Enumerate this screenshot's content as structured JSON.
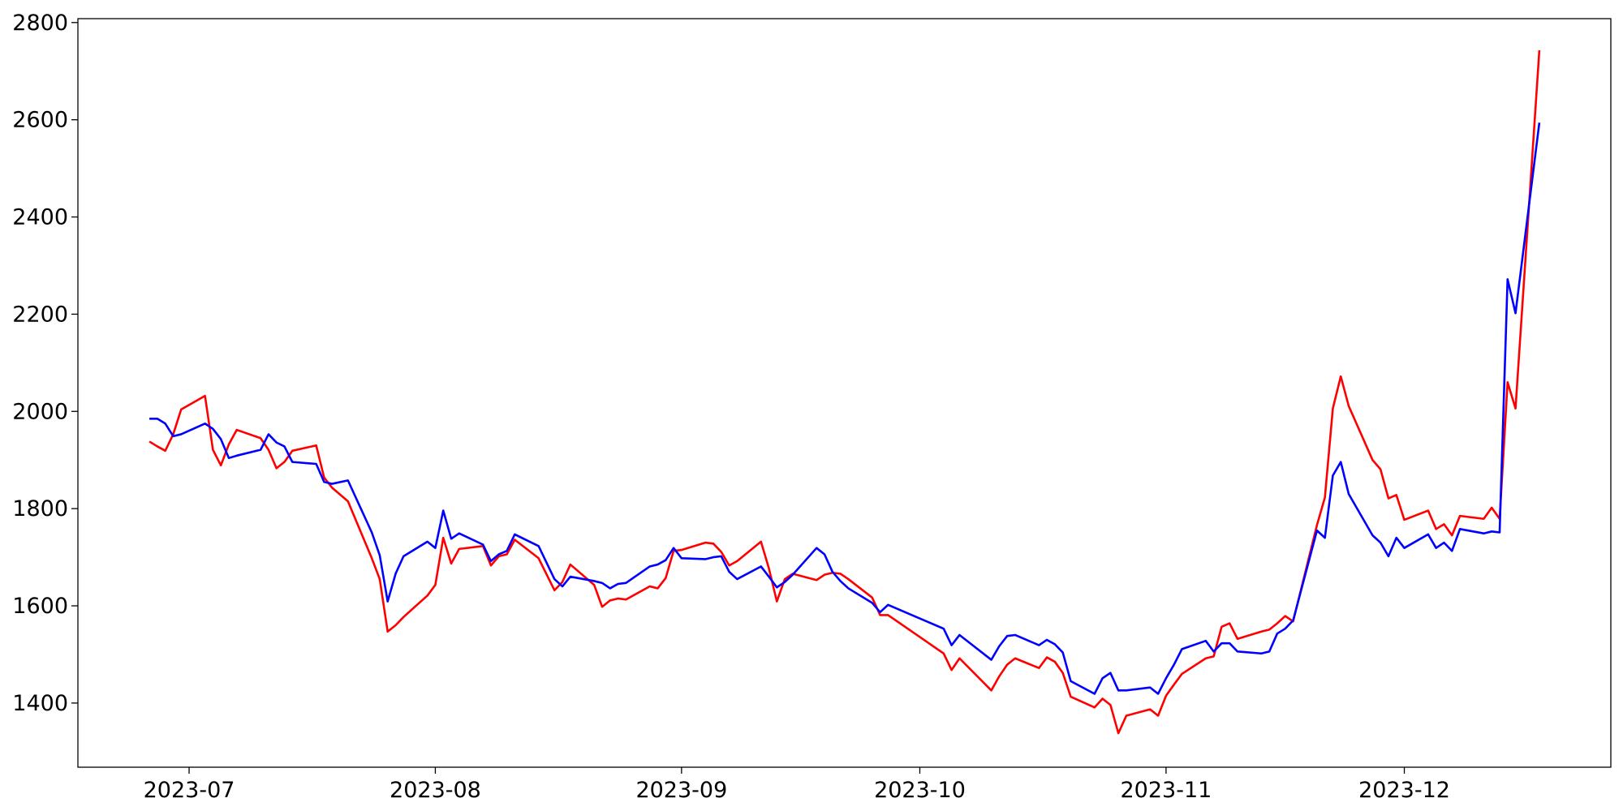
{
  "chart_data": {
    "type": "line",
    "x": [
      "2023-06-26",
      "2023-06-27",
      "2023-06-28",
      "2023-06-29",
      "2023-06-30",
      "2023-07-03",
      "2023-07-04",
      "2023-07-05",
      "2023-07-06",
      "2023-07-07",
      "2023-07-10",
      "2023-07-11",
      "2023-07-12",
      "2023-07-13",
      "2023-07-14",
      "2023-07-17",
      "2023-07-18",
      "2023-07-19",
      "2023-07-21",
      "2023-07-24",
      "2023-07-25",
      "2023-07-26",
      "2023-07-27",
      "2023-07-28",
      "2023-07-31",
      "2023-08-01",
      "2023-08-02",
      "2023-08-03",
      "2023-08-04",
      "2023-08-07",
      "2023-08-08",
      "2023-08-09",
      "2023-08-10",
      "2023-08-11",
      "2023-08-14",
      "2023-08-16",
      "2023-08-17",
      "2023-08-18",
      "2023-08-21",
      "2023-08-22",
      "2023-08-23",
      "2023-08-24",
      "2023-08-25",
      "2023-08-28",
      "2023-08-29",
      "2023-08-30",
      "2023-08-31",
      "2023-09-01",
      "2023-09-04",
      "2023-09-05",
      "2023-09-06",
      "2023-09-07",
      "2023-09-08",
      "2023-09-11",
      "2023-09-12",
      "2023-09-13",
      "2023-09-14",
      "2023-09-15",
      "2023-09-18",
      "2023-09-19",
      "2023-09-20",
      "2023-09-21",
      "2023-09-22",
      "2023-09-25",
      "2023-09-26",
      "2023-09-27",
      "2023-10-04",
      "2023-10-05",
      "2023-10-06",
      "2023-10-10",
      "2023-10-11",
      "2023-10-12",
      "2023-10-13",
      "2023-10-16",
      "2023-10-17",
      "2023-10-18",
      "2023-10-19",
      "2023-10-20",
      "2023-10-23",
      "2023-10-24",
      "2023-10-25",
      "2023-10-26",
      "2023-10-27",
      "2023-10-30",
      "2023-10-31",
      "2023-11-01",
      "2023-11-02",
      "2023-11-03",
      "2023-11-06",
      "2023-11-07",
      "2023-11-08",
      "2023-11-09",
      "2023-11-10",
      "2023-11-13",
      "2023-11-14",
      "2023-11-15",
      "2023-11-16",
      "2023-11-17",
      "2023-11-20",
      "2023-11-21",
      "2023-11-22",
      "2023-11-23",
      "2023-11-24",
      "2023-11-27",
      "2023-11-28",
      "2023-11-29",
      "2023-11-30",
      "2023-12-01",
      "2023-12-04",
      "2023-12-05",
      "2023-12-06",
      "2023-12-07",
      "2023-12-08",
      "2023-12-11",
      "2023-12-12",
      "2023-12-13",
      "2023-12-14",
      "2023-12-15",
      "2023-12-18"
    ],
    "series": [
      {
        "color": "#ff0000",
        "values": [
          1938,
          1928,
          1919,
          1953,
          2004,
          2032,
          1921,
          1889,
          1932,
          1962,
          1945,
          1921,
          1883,
          1896,
          1919,
          1930,
          1864,
          1843,
          1815,
          1698,
          1655,
          1547,
          1560,
          1577,
          1621,
          1643,
          1740,
          1687,
          1717,
          1723,
          1683,
          1702,
          1706,
          1736,
          1698,
          1632,
          1649,
          1685,
          1643,
          1598,
          1611,
          1615,
          1613,
          1640,
          1636,
          1657,
          1713,
          1715,
          1730,
          1728,
          1711,
          1683,
          1692,
          1732,
          1677,
          1609,
          1655,
          1666,
          1653,
          1664,
          1668,
          1666,
          1655,
          1617,
          1581,
          1581,
          1502,
          1468,
          1492,
          1426,
          1455,
          1479,
          1492,
          1472,
          1494,
          1485,
          1462,
          1413,
          1391,
          1409,
          1396,
          1338,
          1374,
          1387,
          1374,
          1415,
          1438,
          1460,
          1492,
          1496,
          1557,
          1564,
          1532,
          1547,
          1551,
          1564,
          1579,
          1568,
          1766,
          1823,
          2006,
          2072,
          2011,
          1900,
          1881,
          1821,
          1828,
          1777,
          1796,
          1758,
          1768,
          1745,
          1785,
          1779,
          1802,
          1779,
          2060,
          2006,
          2743
        ]
      },
      {
        "color": "#0000ff",
        "values": [
          1985,
          1985,
          1975,
          1949,
          1953,
          1975,
          1964,
          1943,
          1904,
          1909,
          1921,
          1953,
          1936,
          1928,
          1896,
          1892,
          1855,
          1851,
          1858,
          1751,
          1704,
          1609,
          1666,
          1702,
          1732,
          1719,
          1796,
          1738,
          1749,
          1726,
          1692,
          1706,
          1713,
          1747,
          1723,
          1655,
          1640,
          1660,
          1651,
          1647,
          1636,
          1645,
          1647,
          1681,
          1685,
          1694,
          1719,
          1698,
          1696,
          1700,
          1702,
          1670,
          1655,
          1681,
          1660,
          1638,
          1649,
          1664,
          1719,
          1706,
          1670,
          1651,
          1636,
          1606,
          1587,
          1602,
          1553,
          1519,
          1540,
          1489,
          1517,
          1538,
          1540,
          1519,
          1530,
          1521,
          1504,
          1445,
          1419,
          1451,
          1462,
          1426,
          1426,
          1432,
          1419,
          1451,
          1479,
          1511,
          1528,
          1506,
          1523,
          1523,
          1506,
          1502,
          1506,
          1543,
          1553,
          1570,
          1755,
          1740,
          1868,
          1896,
          1830,
          1745,
          1730,
          1702,
          1740,
          1719,
          1747,
          1719,
          1730,
          1713,
          1758,
          1749,
          1753,
          1751,
          2272,
          2202,
          2594
        ]
      }
    ],
    "xlim": [
      "2023-06-17",
      "2023-12-27"
    ],
    "xticks": [
      {
        "value": "2023-07-01",
        "label": "2023-07"
      },
      {
        "value": "2023-08-01",
        "label": "2023-08"
      },
      {
        "value": "2023-09-01",
        "label": "2023-09"
      },
      {
        "value": "2023-10-01",
        "label": "2023-10"
      },
      {
        "value": "2023-11-01",
        "label": "2023-11"
      },
      {
        "value": "2023-12-01",
        "label": "2023-12"
      }
    ],
    "ylim": [
      1268,
      2808
    ],
    "yticks": [
      1400,
      1600,
      1800,
      2000,
      2200,
      2400,
      2600,
      2800
    ],
    "grid": false
  }
}
